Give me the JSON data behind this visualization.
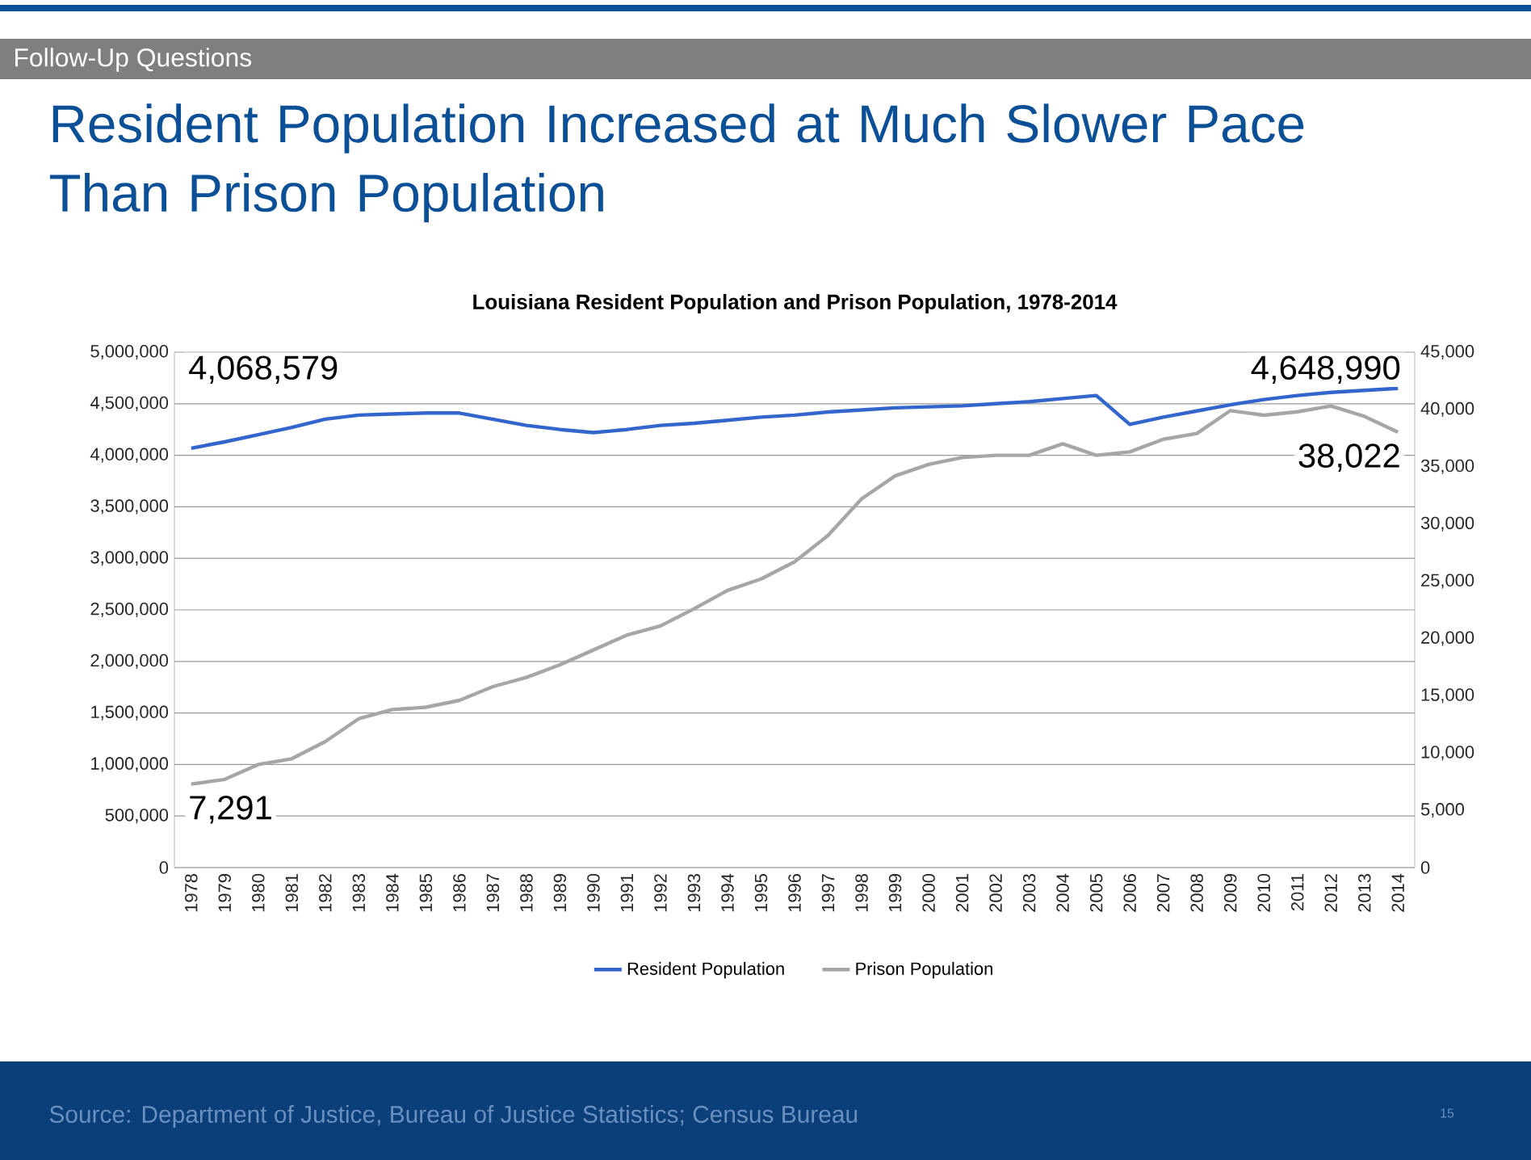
{
  "chart_data": {
    "type": "line",
    "title": "Resident Population Increased at Much Slower Pace Than Prison Population",
    "subtitle": "Louisiana Resident Population and Prison Population, 1978-2014",
    "annotations": [
      "Follow-Up Questions",
      "Source: Department of Justice, Bureau of Justice Statistics; Census Bureau",
      "15"
    ],
    "categories": [
      "1978",
      "1979",
      "1980",
      "1981",
      "1982",
      "1983",
      "1984",
      "1985",
      "1986",
      "1987",
      "1988",
      "1989",
      "1990",
      "1991",
      "1992",
      "1993",
      "1994",
      "1995",
      "1996",
      "1997",
      "1998",
      "1999",
      "2000",
      "2001",
      "2002",
      "2003",
      "2004",
      "2005",
      "2006",
      "2007",
      "2008",
      "2009",
      "2010",
      "2011",
      "2012",
      "2013",
      "2014"
    ],
    "series": [
      {
        "name": "Resident Population",
        "color": "#3366cc",
        "values": [
          4068579,
          4130000,
          4200000,
          4270000,
          4350000,
          4390000,
          4400000,
          4410000,
          4410000,
          4350000,
          4290000,
          4250000,
          4220000,
          4250000,
          4290000,
          4310000,
          4340000,
          4370000,
          4390000,
          4420000,
          4440000,
          4460000,
          4470000,
          4480000,
          4500000,
          4520000,
          4550000,
          4580000,
          4300000,
          4370000,
          4430000,
          4490000,
          4540000,
          4580000,
          4610000,
          4630000,
          4648990
        ],
        "value_labels": [
          "4,068,579",
          null,
          null,
          null,
          null,
          null,
          null,
          null,
          null,
          null,
          null,
          null,
          null,
          null,
          null,
          null,
          null,
          null,
          null,
          null,
          null,
          null,
          null,
          null,
          null,
          null,
          null,
          null,
          null,
          null,
          null,
          null,
          null,
          null,
          null,
          null,
          "4,648,990"
        ]
      },
      {
        "name": "Prison Population",
        "color": "#a6a6a6",
        "axis": "y2",
        "values": [
          7291,
          7700,
          9000,
          9500,
          11000,
          13000,
          13800,
          14000,
          14600,
          15800,
          16600,
          17700,
          19000,
          20300,
          21100,
          22600,
          24200,
          25200,
          26700,
          29000,
          32200,
          34200,
          35200,
          35800,
          36000,
          36000,
          37000,
          36000,
          36300,
          37400,
          37900,
          39900,
          39500,
          39800,
          40300,
          39400,
          38022
        ],
        "value_labels": [
          "7,291",
          null,
          null,
          null,
          null,
          null,
          null,
          null,
          null,
          null,
          null,
          null,
          null,
          null,
          null,
          null,
          null,
          null,
          null,
          null,
          null,
          null,
          null,
          null,
          null,
          null,
          null,
          null,
          null,
          null,
          null,
          null,
          null,
          null,
          null,
          null,
          "38,022"
        ]
      }
    ],
    "ylim": [
      0,
      5000000
    ],
    "yticks": [
      {
        "value": 0,
        "label": "0"
      },
      {
        "value": 500000,
        "label": "500,000"
      },
      {
        "value": 1000000,
        "label": "1,000,000"
      },
      {
        "value": 1500000,
        "label": "1,500,000"
      },
      {
        "value": 2000000,
        "label": "2,000,000"
      },
      {
        "value": 2500000,
        "label": "2,500,000"
      },
      {
        "value": 3000000,
        "label": "3,000,000"
      },
      {
        "value": 3500000,
        "label": "3,500,000"
      },
      {
        "value": 4000000,
        "label": "4,000,000"
      },
      {
        "value": 4500000,
        "label": "4,500,000"
      },
      {
        "value": 5000000,
        "label": "5,000,000"
      }
    ],
    "y2lim": [
      0,
      45000
    ],
    "y2ticks": [
      {
        "value": 0,
        "label": "0"
      },
      {
        "value": 5000,
        "label": "5,000"
      },
      {
        "value": 10000,
        "label": "10,000"
      },
      {
        "value": 15000,
        "label": "15,000"
      },
      {
        "value": 20000,
        "label": "20,000"
      },
      {
        "value": 25000,
        "label": "25,000"
      },
      {
        "value": 30000,
        "label": "30,000"
      },
      {
        "value": 35000,
        "label": "35,000"
      },
      {
        "value": 40000,
        "label": "40,000"
      },
      {
        "value": 45000,
        "label": "45,000"
      }
    ],
    "grid": "y",
    "legend": "bottom",
    "marker": "none",
    "line_style": "solid"
  }
}
